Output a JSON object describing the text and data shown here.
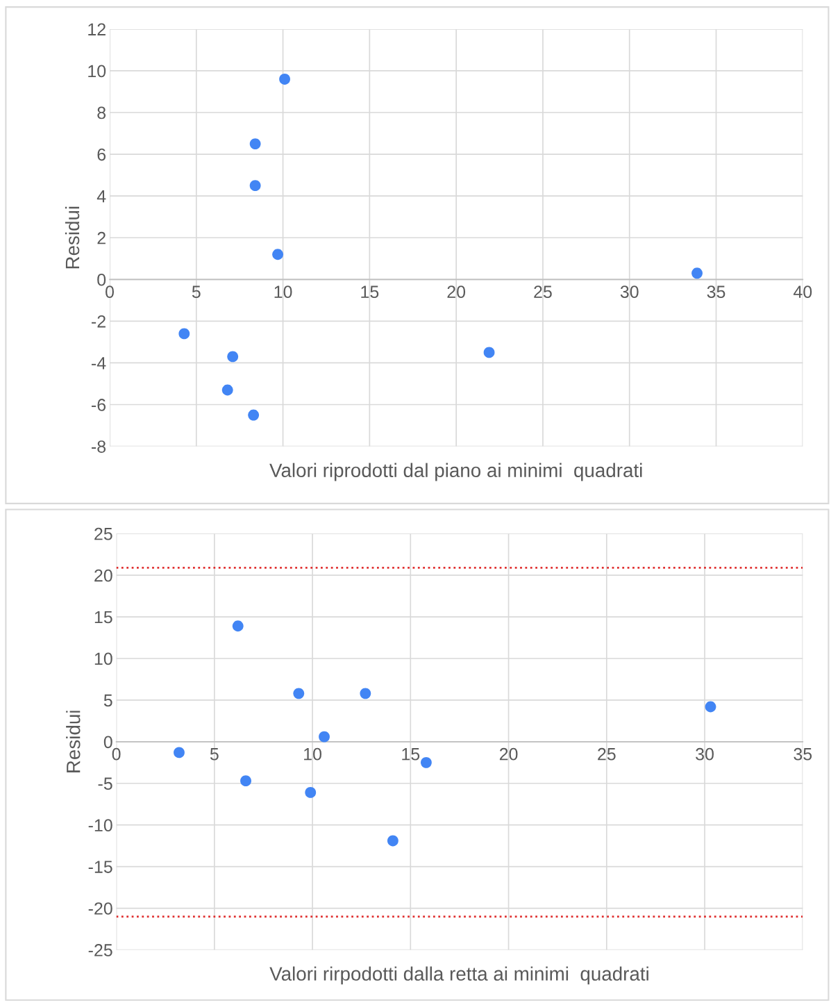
{
  "chart_data": [
    {
      "type": "scatter",
      "xlabel": "Valori riprodotti dal piano ai minimi  quadrati",
      "ylabel": "Residui",
      "marker": "circle",
      "grid": true,
      "xlim": [
        0,
        40
      ],
      "xticks": [
        0,
        5,
        10,
        15,
        20,
        25,
        30,
        35,
        40
      ],
      "ylim": [
        -8,
        12
      ],
      "yticks": [
        -8,
        -6,
        -4,
        -2,
        0,
        2,
        4,
        6,
        8,
        10,
        12
      ],
      "series": [
        {
          "color": "#4285f4",
          "x": [
            10.1,
            8.4,
            8.4,
            9.7,
            33.9,
            4.3,
            7.1,
            6.8,
            8.3,
            21.9
          ],
          "values": [
            9.6,
            6.5,
            4.5,
            1.2,
            0.3,
            -2.6,
            -3.7,
            -5.3,
            -6.5,
            -3.5
          ]
        }
      ]
    },
    {
      "type": "scatter",
      "xlabel": "Valori rirpodotti dalla retta ai minimi  quadrati",
      "ylabel": "Residui",
      "marker": "circle",
      "grid": true,
      "xlim": [
        0,
        35
      ],
      "xticks": [
        0,
        5,
        10,
        15,
        20,
        25,
        30,
        35
      ],
      "ylim": [
        -25,
        25
      ],
      "yticks": [
        -25,
        -20,
        -15,
        -10,
        -5,
        0,
        5,
        10,
        15,
        20,
        25
      ],
      "series": [
        {
          "color": "#4285f4",
          "x": [
            6.2,
            9.3,
            12.7,
            30.3,
            10.6,
            3.2,
            15.8,
            6.6,
            9.9,
            14.1
          ],
          "values": [
            13.9,
            5.8,
            5.8,
            4.2,
            0.6,
            -1.3,
            -2.5,
            -4.7,
            -6.1,
            -11.9
          ]
        }
      ],
      "ref_lines": [
        {
          "axis": "y",
          "value": 20.9,
          "color": "#e03030",
          "line_style": "dotted"
        },
        {
          "axis": "y",
          "value": -21,
          "color": "#e03030",
          "line_style": "dotted"
        }
      ]
    }
  ]
}
